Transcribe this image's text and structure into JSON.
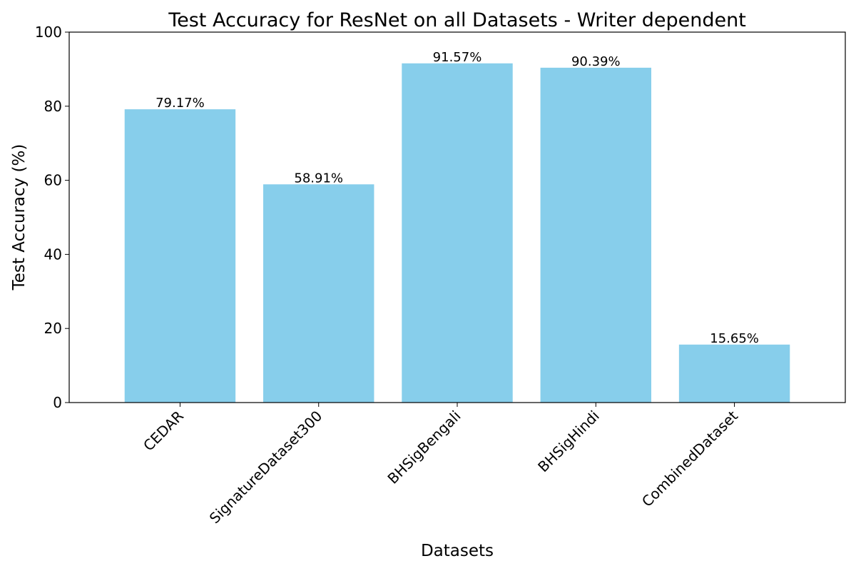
{
  "chart_data": {
    "type": "bar",
    "title": "Test Accuracy for ResNet on all Datasets - Writer dependent",
    "xlabel": "Datasets",
    "ylabel": "Test Accuracy (%)",
    "categories": [
      "CEDAR",
      "SignatureDataset300",
      "BHSigBengali",
      "BHSigHindi",
      "CombinedDataset"
    ],
    "values": [
      79.17,
      58.91,
      91.57,
      90.39,
      15.65
    ],
    "value_labels": [
      "79.17%",
      "58.91%",
      "91.57%",
      "90.39%",
      "15.65%"
    ],
    "ylim": [
      0,
      100
    ],
    "yticks": [
      0,
      20,
      40,
      60,
      80,
      100
    ],
    "ytick_labels": [
      "0",
      "20",
      "40",
      "60",
      "80",
      "100"
    ],
    "bar_color": "#87CEEB",
    "grid": false,
    "legend": "none"
  }
}
